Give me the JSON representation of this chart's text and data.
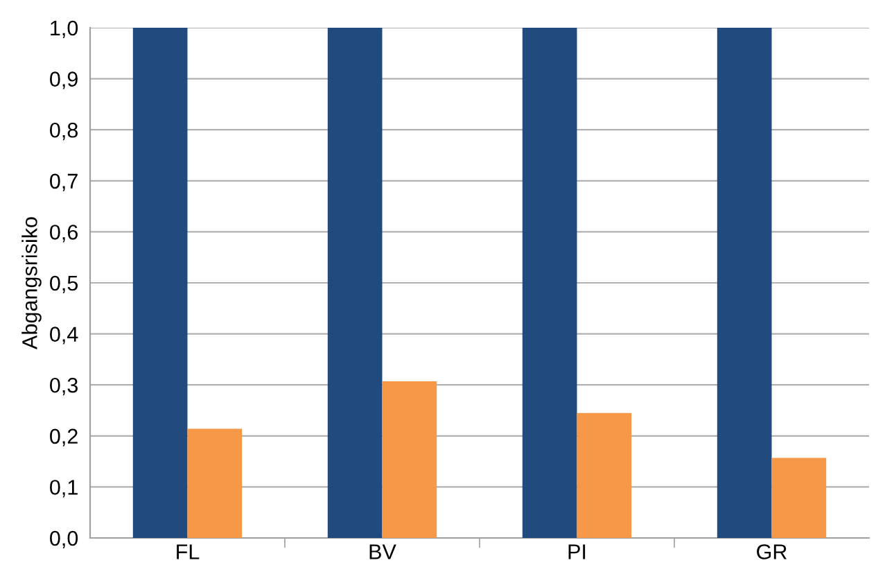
{
  "chart_data": {
    "type": "bar",
    "ylabel": "Abgangsrisiko",
    "categories": [
      "FL",
      "BV",
      "PI",
      "GR"
    ],
    "series": [
      {
        "color": "#214a7e",
        "values": [
          1.0,
          1.0,
          1.0,
          1.0
        ]
      },
      {
        "color": "#f59847",
        "values": [
          0.214,
          0.307,
          0.245,
          0.157
        ]
      }
    ],
    "ylim": [
      0,
      1
    ],
    "yticks": [
      {
        "value": 0,
        "label": "0,0"
      },
      {
        "value": 0.1,
        "label": "0,1"
      },
      {
        "value": 0.2,
        "label": "0,2"
      },
      {
        "value": 0.3,
        "label": "0,3"
      },
      {
        "value": 0.4,
        "label": "0,4"
      },
      {
        "value": 0.5,
        "label": "0,5"
      },
      {
        "value": 0.6,
        "label": "0,6"
      },
      {
        "value": 0.7,
        "label": "0,7"
      },
      {
        "value": 0.8,
        "label": "0,8"
      },
      {
        "value": 0.9,
        "label": "0,9"
      },
      {
        "value": 1.0,
        "label": "1,0"
      }
    ],
    "grid": "y"
  }
}
